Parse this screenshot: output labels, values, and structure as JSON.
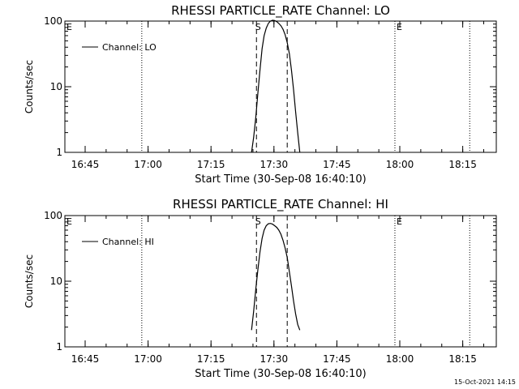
{
  "chart_data": [
    {
      "type": "line",
      "title": "RHESSI PARTICLE_RATE Channel: LO",
      "xlabel": "Start Time (30-Sep-08 16:40:10)",
      "ylabel": "Counts/sec",
      "y_scale": "log",
      "ylim": [
        1,
        100
      ],
      "xlim": [
        "16:40:10",
        "18:23:00"
      ],
      "x_ticks": [
        "16:45",
        "17:00",
        "17:15",
        "17:30",
        "17:45",
        "18:00",
        "18:15"
      ],
      "y_ticks": [
        "1",
        "10",
        "100"
      ],
      "legend": {
        "label": "Channel: LO",
        "position": "top-left"
      },
      "markers": {
        "dotted_lines": [
          "16:58:30",
          "17:58:50",
          "18:16:40"
        ],
        "dashed_lines": [
          "17:25:50",
          "17:33:10"
        ],
        "labels": [
          {
            "text": "E",
            "time": "16:40:10"
          },
          {
            "text": "S",
            "time": "17:25:10"
          },
          {
            "text": "E",
            "time": "17:58:50"
          }
        ]
      },
      "series": [
        {
          "name": "Channel: LO",
          "x": [
            "17:24:40",
            "17:25:10",
            "17:25:40",
            "17:26:10",
            "17:26:40",
            "17:27:10",
            "17:27:40",
            "17:28:10",
            "17:28:40",
            "17:29:10",
            "17:29:40",
            "17:30:10",
            "17:30:40",
            "17:31:10",
            "17:31:40",
            "17:32:10",
            "17:32:40",
            "17:33:10",
            "17:33:40",
            "17:34:10",
            "17:34:40",
            "17:35:10",
            "17:35:40",
            "17:36:10"
          ],
          "y": [
            1.0,
            1.7,
            3.4,
            8.0,
            18,
            38,
            60,
            78,
            92,
            100,
            103,
            102,
            98,
            92,
            85,
            75,
            62,
            47,
            32,
            18,
            9,
            4.2,
            2.0,
            1.0
          ]
        }
      ]
    },
    {
      "type": "line",
      "title": "RHESSI PARTICLE_RATE Channel: HI",
      "xlabel": "Start Time (30-Sep-08 16:40:10)",
      "ylabel": "Counts/sec",
      "y_scale": "log",
      "ylim": [
        1,
        100
      ],
      "xlim": [
        "16:40:10",
        "18:23:00"
      ],
      "x_ticks": [
        "16:45",
        "17:00",
        "17:15",
        "17:30",
        "17:45",
        "18:00",
        "18:15"
      ],
      "y_ticks": [
        "1",
        "10",
        "100"
      ],
      "legend": {
        "label": "Channel: HI",
        "position": "top-left"
      },
      "markers": {
        "dotted_lines": [
          "16:58:30",
          "17:58:50",
          "18:16:40"
        ],
        "dashed_lines": [
          "17:25:50",
          "17:33:10"
        ],
        "labels": [
          {
            "text": "E",
            "time": "16:40:10"
          },
          {
            "text": "S",
            "time": "17:25:10"
          },
          {
            "text": "E",
            "time": "17:58:50"
          }
        ]
      },
      "series": [
        {
          "name": "Channel: HI",
          "x": [
            "17:24:40",
            "17:25:10",
            "17:25:40",
            "17:26:10",
            "17:26:40",
            "17:27:10",
            "17:27:40",
            "17:28:10",
            "17:28:40",
            "17:29:10",
            "17:29:40",
            "17:30:10",
            "17:30:40",
            "17:31:10",
            "17:31:40",
            "17:32:10",
            "17:32:40",
            "17:33:10",
            "17:33:40",
            "17:34:10",
            "17:34:40",
            "17:35:10",
            "17:35:40",
            "17:36:10"
          ],
          "y": [
            1.8,
            3.5,
            7.5,
            15,
            28,
            45,
            60,
            70,
            75,
            76,
            74,
            70,
            66,
            60,
            52,
            42,
            32,
            23,
            14,
            8.5,
            5,
            3.2,
            2.2,
            1.8
          ]
        }
      ]
    }
  ],
  "footer": {
    "timestamp": "15-Oct-2021 14:15"
  }
}
